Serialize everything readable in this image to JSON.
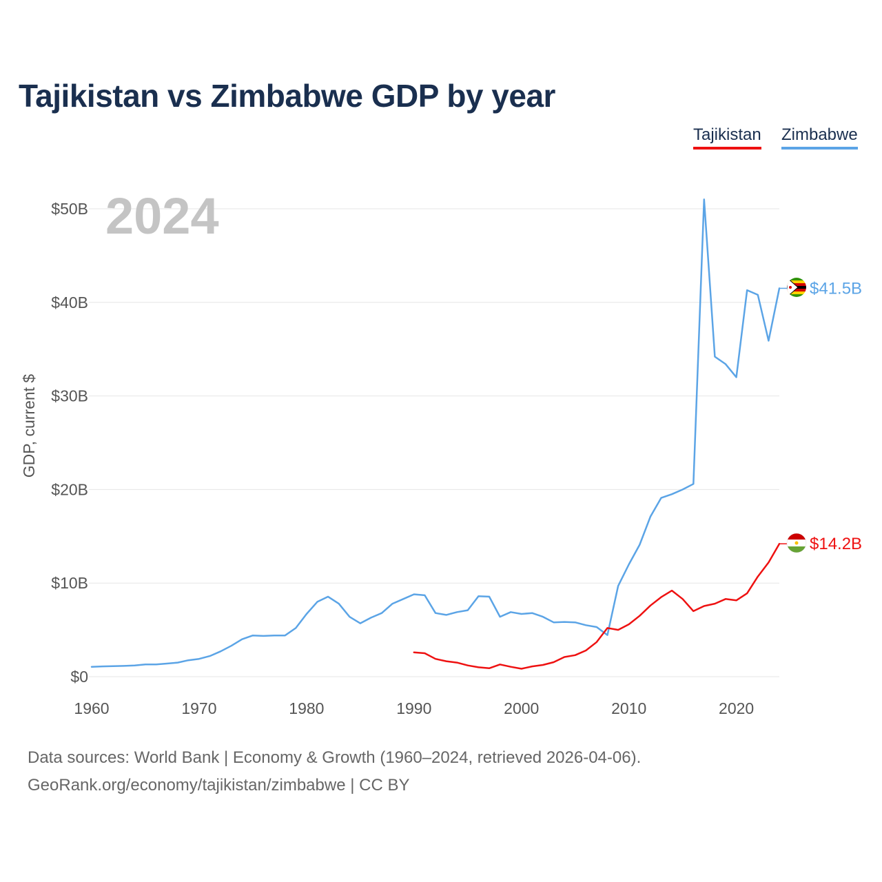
{
  "title": "Tajikistan vs Zimbabwe GDP by year",
  "legend": {
    "tajikistan": "Tajikistan",
    "zimbabwe": "Zimbabwe"
  },
  "footer": {
    "source": "Data sources: World Bank | Economy & Growth (1960–2024, retrieved 2026-04-06).",
    "credit": "GeoRank.org/economy/tajikistan/zimbabwe | CC BY"
  },
  "chart_data": {
    "type": "line",
    "title": "Tajikistan vs Zimbabwe GDP by year",
    "year_label": "2024",
    "xlabel": "",
    "ylabel": "GDP, current $",
    "xlim": [
      1960,
      2024
    ],
    "ylim": [
      0,
      50
    ],
    "x_ticks": [
      1960,
      1970,
      1980,
      1990,
      2000,
      2010,
      2020
    ],
    "y_ticks": [
      {
        "value": 0,
        "label": "$0"
      },
      {
        "value": 10,
        "label": "$10B"
      },
      {
        "value": 20,
        "label": "$20B"
      },
      {
        "value": 30,
        "label": "$30B"
      },
      {
        "value": 40,
        "label": "$40B"
      },
      {
        "value": 50,
        "label": "$50B"
      }
    ],
    "grid": true,
    "legend_position": "top-right",
    "series": [
      {
        "name": "Zimbabwe",
        "color": "#5ba4e6",
        "end_label": "$41.5B",
        "x": [
          1960,
          1961,
          1962,
          1963,
          1964,
          1965,
          1966,
          1967,
          1968,
          1969,
          1970,
          1971,
          1972,
          1973,
          1974,
          1975,
          1976,
          1977,
          1978,
          1979,
          1980,
          1981,
          1982,
          1983,
          1984,
          1985,
          1986,
          1987,
          1988,
          1989,
          1990,
          1991,
          1992,
          1993,
          1994,
          1995,
          1996,
          1997,
          1998,
          1999,
          2000,
          2001,
          2002,
          2003,
          2004,
          2005,
          2006,
          2007,
          2008,
          2009,
          2010,
          2011,
          2012,
          2013,
          2014,
          2015,
          2016,
          2017,
          2018,
          2019,
          2020,
          2021,
          2022,
          2023,
          2024
        ],
        "values": [
          1.05,
          1.1,
          1.12,
          1.15,
          1.2,
          1.3,
          1.3,
          1.4,
          1.5,
          1.75,
          1.9,
          2.2,
          2.7,
          3.3,
          4.0,
          4.4,
          4.35,
          4.4,
          4.4,
          5.2,
          6.7,
          8.0,
          8.55,
          7.8,
          6.4,
          5.7,
          6.3,
          6.8,
          7.8,
          8.3,
          8.8,
          8.7,
          6.8,
          6.6,
          6.9,
          7.1,
          8.6,
          8.55,
          6.4,
          6.9,
          6.7,
          6.8,
          6.4,
          5.8,
          5.85,
          5.8,
          5.5,
          5.3,
          4.45,
          9.7,
          12.0,
          14.1,
          17.1,
          19.1,
          19.5,
          20.0,
          20.6,
          51.0,
          34.2,
          33.4,
          32.0,
          41.3,
          40.8,
          35.9,
          41.5
        ]
      },
      {
        "name": "Tajikistan",
        "color": "#ee1111",
        "end_label": "$14.2B",
        "x": [
          1990,
          1991,
          1992,
          1993,
          1994,
          1995,
          1996,
          1997,
          1998,
          1999,
          2000,
          2001,
          2002,
          2003,
          2004,
          2005,
          2006,
          2007,
          2008,
          2009,
          2010,
          2011,
          2012,
          2013,
          2014,
          2015,
          2016,
          2017,
          2018,
          2019,
          2020,
          2021,
          2022,
          2023,
          2024
        ],
        "values": [
          2.6,
          2.5,
          1.9,
          1.65,
          1.5,
          1.2,
          1.0,
          0.9,
          1.3,
          1.05,
          0.85,
          1.1,
          1.25,
          1.55,
          2.1,
          2.3,
          2.8,
          3.7,
          5.2,
          5.0,
          5.6,
          6.5,
          7.6,
          8.5,
          9.2,
          8.3,
          7.0,
          7.55,
          7.8,
          8.3,
          8.15,
          8.9,
          10.7,
          12.2,
          14.2
        ]
      }
    ]
  }
}
